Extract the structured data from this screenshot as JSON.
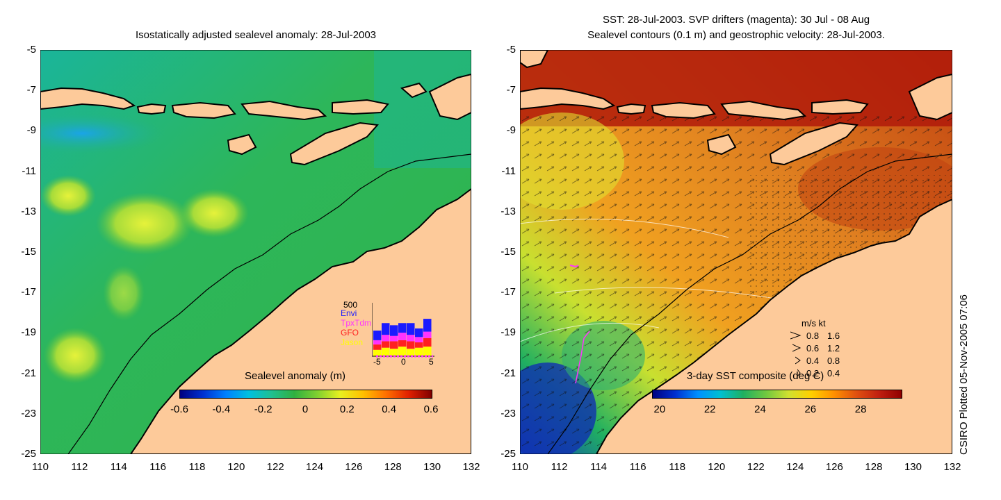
{
  "left_panel": {
    "title": "Isostatically adjusted sealevel anomaly: 28-Jul-2003",
    "colorbar": {
      "title": "Sealevel anomaly (m)",
      "labels": [
        "-0.6",
        "-0.4",
        "-0.2",
        "0",
        "0.2",
        "0.4",
        "0.6"
      ]
    },
    "inset": {
      "ymax_label": "500",
      "series": [
        {
          "name": "Envi",
          "color": "#1a1aff"
        },
        {
          "name": "TpxTdm",
          "color": "#ff33ff"
        },
        {
          "name": "GFO",
          "color": "#ff2020"
        },
        {
          "name": "Jason",
          "color": "#ffff00"
        }
      ],
      "x_labels": [
        "-5",
        "0",
        "5"
      ],
      "bars": [
        {
          "Jason": 60,
          "GFO": 50,
          "TpxTdm": 40,
          "Envi": 90
        },
        {
          "Jason": 80,
          "GFO": 60,
          "TpxTdm": 60,
          "Envi": 110
        },
        {
          "Jason": 70,
          "GFO": 70,
          "TpxTdm": 50,
          "Envi": 100
        },
        {
          "Jason": 90,
          "GFO": 60,
          "TpxTdm": 70,
          "Envi": 90
        },
        {
          "Jason": 70,
          "GFO": 70,
          "TpxTdm": 60,
          "Envi": 110
        },
        {
          "Jason": 80,
          "GFO": 50,
          "TpxTdm": 50,
          "Envi": 80
        },
        {
          "Jason": 90,
          "GFO": 80,
          "TpxTdm": 60,
          "Envi": 120
        }
      ]
    }
  },
  "right_panel": {
    "title_line1": "SST: 28-Jul-2003. SVP drifters (magenta): 30 Jul - 08 Aug",
    "title_line2": "Sealevel contours (0.1 m) and geostrophic velocity: 28-Jul-2003.",
    "colorbar": {
      "title": "3-day SST composite (deg C)",
      "labels": [
        "20",
        "22",
        "24",
        "26",
        "28"
      ]
    },
    "velocity_legend": {
      "header": "m/s  kt",
      "rows": [
        {
          "ms": "0.8",
          "kt": "1.6"
        },
        {
          "ms": "0.6",
          "kt": "1.2"
        },
        {
          "ms": "0.4",
          "kt": "0.8"
        },
        {
          "ms": "0.2",
          "kt": "0.4"
        }
      ]
    }
  },
  "axes": {
    "y_ticks": [
      "-5",
      "-7",
      "-9",
      "-11",
      "-13",
      "-15",
      "-17",
      "-19",
      "-21",
      "-23",
      "-25"
    ],
    "x_ticks": [
      "110",
      "112",
      "114",
      "116",
      "118",
      "120",
      "122",
      "124",
      "126",
      "128",
      "130",
      "132"
    ],
    "lon_range": [
      110,
      132
    ],
    "lat_range": [
      -25,
      -5
    ]
  },
  "credit": "CSIRO Plotted 05-Nov-2005 07:06",
  "colors": {
    "land": "#fdca9a",
    "sla_background": "#22b44a",
    "sst_background": "#d9761a"
  }
}
